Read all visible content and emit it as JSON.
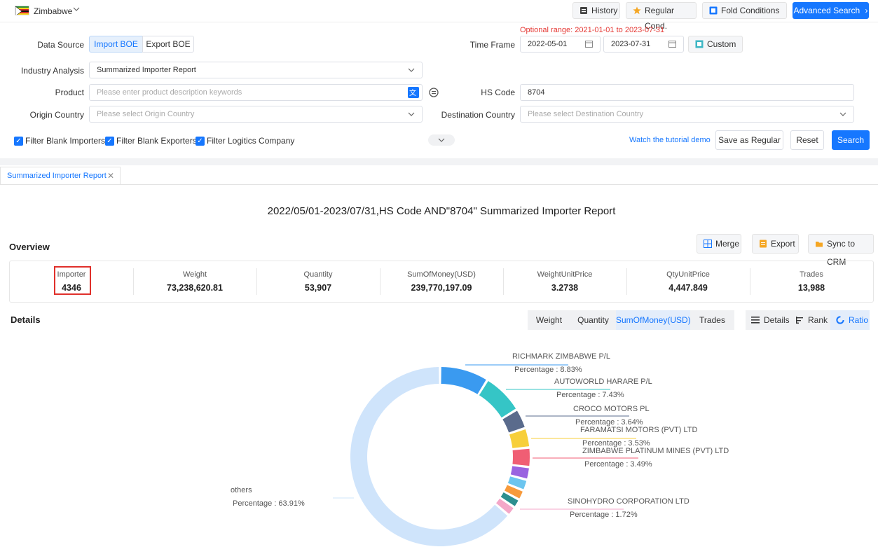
{
  "topbar": {
    "country": "Zimbabwe",
    "history": "History",
    "regular_cond": "Regular Cond.",
    "fold_conditions": "Fold Conditions",
    "advanced_search": "Advanced Search"
  },
  "form": {
    "data_source_label": "Data Source",
    "import_boe": "Import BOE",
    "export_boe": "Export BOE",
    "optional_range": "Optional range: 2021-01-01 to 2023-07-31",
    "time_frame_label": "Time Frame",
    "date_from": "2022-05-01",
    "date_to": "2023-07-31",
    "custom": "Custom",
    "industry_label": "Industry Analysis",
    "industry_value": "Summarized Importer Report",
    "product_label": "Product",
    "product_placeholder": "Please enter product description keywords",
    "hs_label": "HS Code",
    "hs_value": "8704",
    "origin_label": "Origin Country",
    "origin_placeholder": "Please select Origin Country",
    "dest_label": "Destination Country",
    "dest_placeholder": "Please select Destination Country",
    "filter_importers": "Filter Blank Importers",
    "filter_exporters": "Filter Blank Exporters",
    "filter_logistics": "Filter Logitics Company",
    "tutorial": "Watch the tutorial demo",
    "save_regular": "Save as Regular",
    "reset": "Reset",
    "search": "Search"
  },
  "tab": {
    "label": "Summarized Importer Report"
  },
  "report": {
    "title": "2022/05/01-2023/07/31,HS Code AND\"8704\" Summarized Importer Report",
    "overview": "Overview",
    "merge": "Merge",
    "export": "Export",
    "sync_crm": "Sync to CRM",
    "stats": [
      {
        "key": "Importer",
        "value": "4346"
      },
      {
        "key": "Weight",
        "value": "73,238,620.81"
      },
      {
        "key": "Quantity",
        "value": "53,907"
      },
      {
        "key": "SumOfMoney(USD)",
        "value": "239,770,197.09"
      },
      {
        "key": "WeightUnitPrice",
        "value": "3.2738"
      },
      {
        "key": "QtyUnitPrice",
        "value": "4,447.849"
      },
      {
        "key": "Trades",
        "value": "13,988"
      }
    ],
    "details": "Details",
    "metric_tabs": [
      "Weight",
      "Quantity",
      "SumOfMoney(USD)",
      "Trades"
    ],
    "view_tabs": [
      "Details",
      "Rank",
      "Ratio"
    ]
  },
  "chart_data": {
    "type": "pie",
    "donut": true,
    "slices": [
      {
        "name": "RICHMARK ZIMBABWE P/L",
        "percentage_label": "Percentage : 8.83%",
        "value": 8.83,
        "color": "#3a9af0"
      },
      {
        "name": "AUTOWORLD HARARE P/L",
        "percentage_label": "Percentage : 7.43%",
        "value": 7.43,
        "color": "#35c5c6"
      },
      {
        "name": "CROCO MOTORS PL",
        "percentage_label": "Percentage : 3.64%",
        "value": 3.64,
        "color": "#5a6b8c"
      },
      {
        "name": "FARAMATSI MOTORS (PVT) LTD",
        "percentage_label": "Percentage : 3.53%",
        "value": 3.53,
        "color": "#f7cf3a"
      },
      {
        "name": "ZIMBABWE PLATINUM MINES (PVT) LTD",
        "percentage_label": "Percentage : 3.49%",
        "value": 3.49,
        "color": "#f05e74"
      },
      {
        "name": "",
        "value": 2.3,
        "color": "#9a63e0"
      },
      {
        "name": "",
        "value": 2.0,
        "color": "#6cc5ef"
      },
      {
        "name": "",
        "value": 1.8,
        "color": "#f79a3b"
      },
      {
        "name": "",
        "value": 1.6,
        "color": "#2c8f8f"
      },
      {
        "name": "SINOHYDRO CORPORATION LTD",
        "percentage_label": "Percentage : 1.72%",
        "value": 1.72,
        "color": "#f4a7c8"
      },
      {
        "name": "others",
        "percentage_label": "Percentage : 63.91%",
        "value": 63.91,
        "color": "#cfe4fb"
      }
    ]
  }
}
